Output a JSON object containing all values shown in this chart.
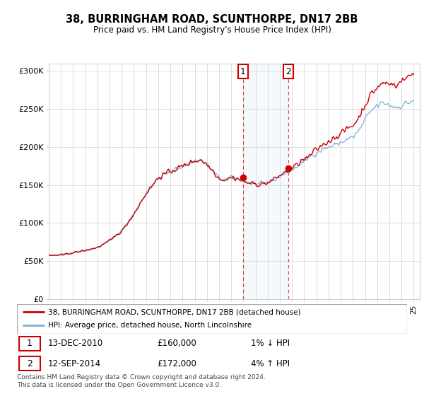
{
  "title": "38, BURRINGHAM ROAD, SCUNTHORPE, DN17 2BB",
  "subtitle": "Price paid vs. HM Land Registry's House Price Index (HPI)",
  "legend_line1": "38, BURRINGHAM ROAD, SCUNTHORPE, DN17 2BB (detached house)",
  "legend_line2": "HPI: Average price, detached house, North Lincolnshire",
  "sale1_label": "1",
  "sale1_date": "13-DEC-2010",
  "sale1_price": "£160,000",
  "sale1_hpi": "1% ↓ HPI",
  "sale2_label": "2",
  "sale2_date": "12-SEP-2014",
  "sale2_price": "£172,000",
  "sale2_hpi": "4% ↑ HPI",
  "footer": "Contains HM Land Registry data © Crown copyright and database right 2024.\nThis data is licensed under the Open Government Licence v3.0.",
  "hpi_color": "#7bafd4",
  "price_color": "#cc0000",
  "sale1_vline_x": 2010.96,
  "sale2_vline_x": 2014.71,
  "sale1_price_val": 160000,
  "sale2_price_val": 172000,
  "ylim": [
    0,
    310000
  ],
  "xlim_start": 1995,
  "xlim_end": 2025.5
}
